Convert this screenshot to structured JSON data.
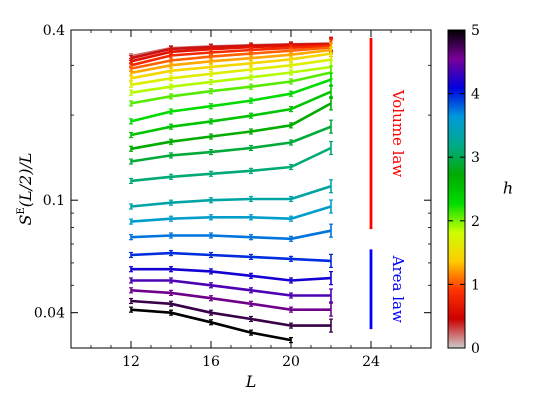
{
  "chart_data": {
    "type": "line",
    "title": "",
    "xlabel": "L",
    "ylabel": "S^E(L/2)/L",
    "x_scale": "linear",
    "y_scale": "log",
    "xlim": [
      9,
      27
    ],
    "ylim": [
      0.03,
      0.4
    ],
    "xticks": [
      12,
      16,
      20,
      24
    ],
    "xtick_labels": [
      "12",
      "16",
      "20",
      "24"
    ],
    "yticks": [
      0.04,
      0.1,
      0.4
    ],
    "ytick_labels": [
      "0.04",
      "0.1",
      "0.4"
    ],
    "grid": false,
    "colorbar": {
      "label": "h",
      "min": 0,
      "max": 5,
      "ticks": [
        0,
        1,
        2,
        3,
        4,
        5
      ],
      "tick_labels": [
        "0",
        "1",
        "2",
        "3",
        "4",
        "5"
      ],
      "colormap": "nipy_spectral_reversed",
      "colors": [
        "#000000",
        "#7a0099",
        "#0000dd",
        "#0099dd",
        "#00aa88",
        "#00aa00",
        "#00dd00",
        "#ccff00",
        "#ffcc00",
        "#ff3300",
        "#cc0000",
        "#cccccc"
      ]
    },
    "series": [
      {
        "h": 0.25,
        "x": [
          12,
          14,
          16,
          18,
          20,
          22
        ],
        "y": [
          0.323,
          0.345,
          0.35,
          0.353,
          0.356,
          0.358
        ]
      },
      {
        "h": 0.5,
        "x": [
          12,
          14,
          16,
          18,
          20,
          22
        ],
        "y": [
          0.318,
          0.343,
          0.348,
          0.352,
          0.355,
          0.357
        ]
      },
      {
        "h": 0.75,
        "x": [
          12,
          14,
          16,
          18,
          20,
          22
        ],
        "y": [
          0.31,
          0.335,
          0.342,
          0.348,
          0.352,
          0.355
        ]
      },
      {
        "h": 1.0,
        "x": [
          12,
          14,
          16,
          18,
          20,
          22
        ],
        "y": [
          0.3,
          0.325,
          0.333,
          0.34,
          0.346,
          0.352
        ]
      },
      {
        "h": 1.25,
        "x": [
          12,
          14,
          16,
          18,
          20,
          22
        ],
        "y": [
          0.292,
          0.312,
          0.322,
          0.33,
          0.338,
          0.347
        ]
      },
      {
        "h": 1.5,
        "x": [
          12,
          14,
          16,
          18,
          20,
          22
        ],
        "y": [
          0.282,
          0.3,
          0.31,
          0.318,
          0.327,
          0.34
        ]
      },
      {
        "h": 1.75,
        "x": [
          12,
          14,
          16,
          18,
          20,
          22
        ],
        "y": [
          0.27,
          0.287,
          0.296,
          0.305,
          0.315,
          0.33
        ]
      },
      {
        "h": 2.0,
        "x": [
          12,
          14,
          16,
          18,
          20,
          22
        ],
        "y": [
          0.256,
          0.27,
          0.28,
          0.29,
          0.3,
          0.314
        ]
      },
      {
        "h": 2.25,
        "x": [
          12,
          14,
          16,
          18,
          20,
          22
        ],
        "y": [
          0.24,
          0.252,
          0.262,
          0.272,
          0.283,
          0.296
        ]
      },
      {
        "h": 2.5,
        "x": [
          12,
          14,
          16,
          18,
          20,
          22
        ],
        "y": [
          0.22,
          0.233,
          0.243,
          0.252,
          0.263,
          0.283
        ]
      },
      {
        "h": 2.75,
        "x": [
          12,
          14,
          16,
          18,
          20,
          22
        ],
        "y": [
          0.19,
          0.206,
          0.215,
          0.225,
          0.238,
          0.267
        ]
      },
      {
        "h": 3.0,
        "x": [
          12,
          14,
          16,
          18,
          20,
          22
        ],
        "y": [
          0.17,
          0.182,
          0.19,
          0.199,
          0.21,
          0.242
        ]
      },
      {
        "h": 3.25,
        "x": [
          12,
          14,
          16,
          18,
          20,
          22
        ],
        "y": [
          0.152,
          0.161,
          0.168,
          0.175,
          0.184,
          0.22
        ]
      },
      {
        "h": 3.5,
        "x": [
          12,
          14,
          16,
          18,
          20,
          22
        ],
        "y": [
          0.137,
          0.144,
          0.148,
          0.153,
          0.16,
          0.182
        ]
      },
      {
        "h": 3.75,
        "x": [
          12,
          14,
          16,
          18,
          20,
          22
        ],
        "y": [
          0.117,
          0.121,
          0.124,
          0.127,
          0.131,
          0.153
        ]
      },
      {
        "h": 4.0,
        "x": [
          12,
          14,
          16,
          18,
          20,
          22
        ],
        "y": [
          0.095,
          0.098,
          0.1,
          0.101,
          0.101,
          0.112
        ]
      },
      {
        "h": 4.25,
        "x": [
          12,
          14,
          16,
          18,
          20,
          22
        ],
        "y": [
          0.084,
          0.086,
          0.087,
          0.087,
          0.086,
          0.095
        ]
      },
      {
        "h": 4.5,
        "x": [
          12,
          14,
          16,
          18,
          20,
          22
        ],
        "y": [
          0.074,
          0.075,
          0.075,
          0.074,
          0.073,
          0.078
        ]
      },
      {
        "h": 4.75,
        "x": [
          12,
          14,
          16,
          18,
          20,
          22
        ],
        "y": [
          0.064,
          0.065,
          0.064,
          0.063,
          0.062,
          0.061
        ]
      },
      {
        "h": 5.0,
        "x": [
          12,
          14,
          16,
          18,
          20,
          22
        ],
        "y": [
          0.057,
          0.057,
          0.056,
          0.054,
          0.052,
          0.053
        ]
      },
      {
        "h": 5.25,
        "x": [
          12,
          14,
          16,
          18,
          20,
          22
        ],
        "y": [
          0.052,
          0.052,
          0.05,
          0.048,
          0.046,
          0.046
        ]
      },
      {
        "h": 5.5,
        "x": [
          12,
          14,
          16,
          18,
          20,
          22
        ],
        "y": [
          0.048,
          0.047,
          0.045,
          0.043,
          0.041,
          0.041
        ]
      },
      {
        "h": 5.75,
        "x": [
          12,
          14,
          16,
          18,
          20,
          22
        ],
        "y": [
          0.044,
          0.043,
          0.04,
          0.038,
          0.036,
          0.036
        ]
      },
      {
        "h": 6.0,
        "x": [
          12,
          14,
          16,
          18,
          20
        ],
        "y": [
          0.041,
          0.04,
          0.037,
          0.034,
          0.032
        ]
      }
    ],
    "annotations": [
      {
        "text": "Volume law",
        "color": "#ff0000",
        "y_range": [
          0.079,
          0.375
        ]
      },
      {
        "text": "Area law",
        "color": "#0000ff",
        "y_range": [
          0.035,
          0.067
        ]
      }
    ]
  }
}
